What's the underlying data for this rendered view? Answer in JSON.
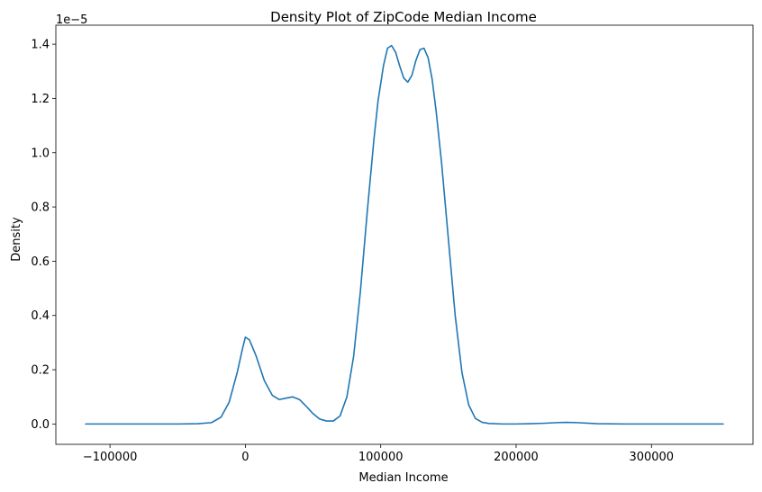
{
  "chart_data": {
    "type": "line",
    "title": "Density Plot of ZipCode Median Income",
    "xlabel": "Median Income",
    "ylabel": "Density",
    "y_offset_text": "1e−5",
    "xlim": [
      -140000,
      375000
    ],
    "ylim": [
      -7.5e-07,
      1.47e-05
    ],
    "x_ticks": [
      {
        "value": -100000,
        "label": "−100000"
      },
      {
        "value": 0,
        "label": "0"
      },
      {
        "value": 100000,
        "label": "100000"
      },
      {
        "value": 200000,
        "label": "200000"
      },
      {
        "value": 300000,
        "label": "300000"
      }
    ],
    "y_ticks": [
      {
        "value": 0.0,
        "label": "0.0"
      },
      {
        "value": 2e-06,
        "label": "0.2"
      },
      {
        "value": 4e-06,
        "label": "0.4"
      },
      {
        "value": 6e-06,
        "label": "0.6"
      },
      {
        "value": 8e-06,
        "label": "0.8"
      },
      {
        "value": 1e-05,
        "label": "1.0"
      },
      {
        "value": 1.2e-05,
        "label": "1.2"
      },
      {
        "value": 1.4e-05,
        "label": "1.4"
      }
    ],
    "grid": false,
    "line_color": "#1f77b4",
    "series": [
      {
        "x": [
          -118000,
          -80000,
          -50000,
          -35000,
          -25000,
          -18000,
          -12000,
          -6000,
          -2000,
          0,
          3000,
          8000,
          14000,
          20000,
          25000,
          30000,
          35000,
          40000,
          45000,
          50000,
          55000,
          60000,
          65000,
          70000,
          75000,
          80000,
          85000,
          90000,
          95000,
          98000,
          102000,
          105000,
          108000,
          111000,
          114000,
          117000,
          120000,
          123000,
          126000,
          129000,
          132000,
          135000,
          138000,
          141000,
          145000,
          150000,
          155000,
          160000,
          165000,
          170000,
          175000,
          180000,
          190000,
          200000,
          210000,
          220000,
          230000,
          237000,
          245000,
          260000,
          280000,
          300000,
          330000,
          353000
        ],
        "y": [
          0,
          0,
          0,
          1e-08,
          5e-08,
          2.5e-07,
          8e-07,
          1.9e-06,
          2.8e-06,
          3.2e-06,
          3.1e-06,
          2.5e-06,
          1.6e-06,
          1.05e-06,
          9e-07,
          9.5e-07,
          1e-06,
          9e-07,
          6.5e-07,
          3.8e-07,
          1.8e-07,
          1.1e-07,
          1.1e-07,
          3e-07,
          1e-06,
          2.5e-06,
          4.9e-06,
          7.8e-06,
          1.05e-05,
          1.19e-05,
          1.32e-05,
          1.385e-05,
          1.395e-05,
          1.37e-05,
          1.32e-05,
          1.275e-05,
          1.26e-05,
          1.285e-05,
          1.34e-05,
          1.38e-05,
          1.385e-05,
          1.35e-05,
          1.27e-05,
          1.15e-05,
          9.6e-06,
          6.8e-06,
          4e-06,
          1.9e-06,
          7e-07,
          2e-07,
          6e-08,
          2e-08,
          0,
          0,
          1e-08,
          2.5e-08,
          5e-08,
          6e-08,
          5e-08,
          1e-08,
          0,
          0,
          0,
          0
        ]
      }
    ]
  }
}
